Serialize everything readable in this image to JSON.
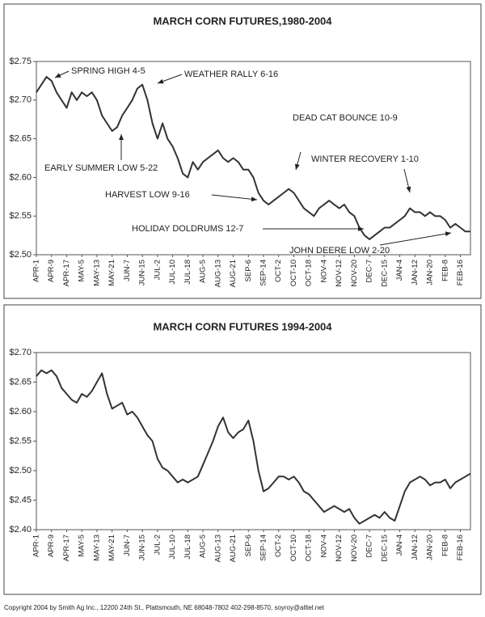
{
  "chart_data": [
    {
      "type": "line",
      "title": "MARCH CORN FUTURES,1980-2004",
      "categories": [
        "APR-1",
        null,
        null,
        "APR-9",
        null,
        null,
        "APR-17",
        null,
        null,
        "MAY-5",
        null,
        null,
        "MAY-13",
        null,
        null,
        "MAY-21",
        null,
        null,
        "JUN-7",
        null,
        null,
        "JUN-15",
        null,
        null,
        "JUL-2",
        null,
        null,
        "JUL-10",
        null,
        null,
        "JUL-18",
        null,
        null,
        "AUG-5",
        null,
        null,
        "AUG-13",
        null,
        null,
        "AUG-21",
        null,
        null,
        "SEP-6",
        null,
        null,
        "SEP-14",
        null,
        null,
        "OCT-2",
        null,
        null,
        "OCT-10",
        null,
        null,
        "OCT-18",
        null,
        null,
        "NOV-4",
        null,
        null,
        "NOV-12",
        null,
        null,
        "NOV-20",
        null,
        null,
        "DEC-7",
        null,
        null,
        "DEC-15",
        null,
        null,
        "JAN-4",
        null,
        null,
        "JAN-12",
        null,
        null,
        "JAN-20",
        null,
        null,
        "FEB-8",
        null,
        null,
        "FEB-16",
        null,
        null
      ],
      "values": [
        2.71,
        2.72,
        2.73,
        2.725,
        2.71,
        2.7,
        2.69,
        2.71,
        2.7,
        2.71,
        2.705,
        2.71,
        2.7,
        2.68,
        2.67,
        2.66,
        2.665,
        2.68,
        2.69,
        2.7,
        2.715,
        2.72,
        2.7,
        2.67,
        2.65,
        2.67,
        2.65,
        2.64,
        2.625,
        2.605,
        2.6,
        2.62,
        2.61,
        2.62,
        2.625,
        2.63,
        2.635,
        2.625,
        2.62,
        2.625,
        2.62,
        2.61,
        2.61,
        2.6,
        2.58,
        2.57,
        2.565,
        2.57,
        2.575,
        2.58,
        2.585,
        2.58,
        2.57,
        2.56,
        2.555,
        2.55,
        2.56,
        2.565,
        2.57,
        2.565,
        2.56,
        2.565,
        2.555,
        2.55,
        2.535,
        2.525,
        2.52,
        2.525,
        2.53,
        2.535,
        2.535,
        2.54,
        2.545,
        2.55,
        2.56,
        2.555,
        2.555,
        2.55,
        2.555,
        2.55,
        2.55,
        2.545,
        2.535,
        2.54,
        2.535,
        2.53,
        2.53
      ],
      "color": "#333333",
      "ylim": [
        2.5,
        2.75
      ],
      "yticks": [
        {
          "value": 2.5,
          "label": "$2.50"
        },
        {
          "value": 2.55,
          "label": "$2.55"
        },
        {
          "value": 2.6,
          "label": "$2.60"
        },
        {
          "value": 2.65,
          "label": "$2.65"
        },
        {
          "value": 2.7,
          "label": "$2.70"
        },
        {
          "value": 2.75,
          "label": "$2.75"
        }
      ],
      "annotations": [
        "SPRING HIGH 4-5",
        "WEATHER RALLY 6-16",
        "DEAD CAT BOUNCE 10-9",
        "EARLY SUMMER LOW 5-22",
        "HARVEST LOW  9-16",
        "WINTER RECOVERY 1-10",
        "HOLIDAY DOLDRUMS 12-7",
        "JOHN DEERE LOW 2-20"
      ]
    },
    {
      "type": "line",
      "title": "MARCH CORN FUTURES 1994-2004",
      "categories": [
        "APR-1",
        null,
        null,
        "APR-9",
        null,
        null,
        "APR-17",
        null,
        null,
        "MAY-5",
        null,
        null,
        "MAY-13",
        null,
        null,
        "MAY-21",
        null,
        null,
        "JUN-7",
        null,
        null,
        "JUN-15",
        null,
        null,
        "JUL-2",
        null,
        null,
        "JUL-10",
        null,
        null,
        "JUL-18",
        null,
        null,
        "AUG-5",
        null,
        null,
        "AUG-13",
        null,
        null,
        "AUG-21",
        null,
        null,
        "SEP-6",
        null,
        null,
        "SEP-14",
        null,
        null,
        "OCT-2",
        null,
        null,
        "OCT-10",
        null,
        null,
        "OCT-18",
        null,
        null,
        "NOV-4",
        null,
        null,
        "NOV-12",
        null,
        null,
        "NOV-20",
        null,
        null,
        "DEC-7",
        null,
        null,
        "DEC-15",
        null,
        null,
        "JAN-4",
        null,
        null,
        "JAN-12",
        null,
        null,
        "JAN-20",
        null,
        null,
        "FEB-8",
        null,
        null,
        "FEB-16",
        null,
        null
      ],
      "values": [
        2.66,
        2.67,
        2.665,
        2.67,
        2.66,
        2.64,
        2.63,
        2.62,
        2.615,
        2.63,
        2.625,
        2.635,
        2.65,
        2.665,
        2.63,
        2.605,
        2.61,
        2.615,
        2.595,
        2.6,
        2.59,
        2.575,
        2.56,
        2.55,
        2.52,
        2.505,
        2.5,
        2.49,
        2.48,
        2.485,
        2.48,
        2.485,
        2.49,
        2.51,
        2.53,
        2.55,
        2.575,
        2.59,
        2.565,
        2.555,
        2.565,
        2.57,
        2.585,
        2.55,
        2.5,
        2.465,
        2.47,
        2.48,
        2.49,
        2.49,
        2.485,
        2.49,
        2.48,
        2.465,
        2.46,
        2.45,
        2.44,
        2.43,
        2.435,
        2.44,
        2.435,
        2.43,
        2.435,
        2.42,
        2.41,
        2.415,
        2.42,
        2.425,
        2.42,
        2.43,
        2.42,
        2.415,
        2.44,
        2.465,
        2.48,
        2.485,
        2.49,
        2.485,
        2.475,
        2.48,
        2.48,
        2.485,
        2.47,
        2.48,
        2.485,
        2.49,
        2.495
      ],
      "color": "#333333",
      "ylim": [
        2.4,
        2.7
      ],
      "yticks": [
        {
          "value": 2.4,
          "label": "$2.40"
        },
        {
          "value": 2.45,
          "label": "$2.45"
        },
        {
          "value": 2.5,
          "label": "$2.50"
        },
        {
          "value": 2.55,
          "label": "$2.55"
        },
        {
          "value": 2.6,
          "label": "$2.60"
        },
        {
          "value": 2.65,
          "label": "$2.65"
        },
        {
          "value": 2.7,
          "label": "$2.70"
        }
      ],
      "annotations": []
    }
  ],
  "footer": "Copyright 2004 by Smith Ag Inc., 12200 24th St., Plattsmouth, NE 68048-7802 402-298-8570, soyroy@alltel.net"
}
